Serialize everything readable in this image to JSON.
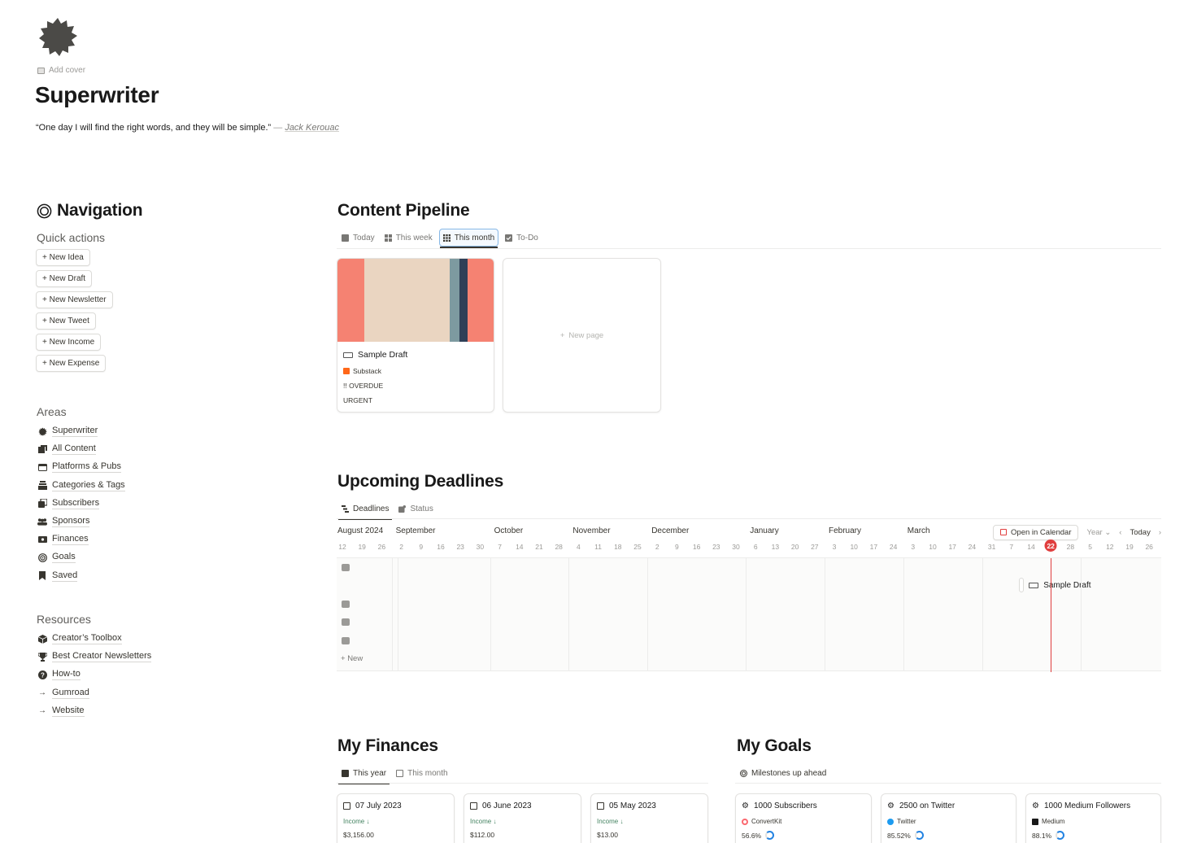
{
  "page": {
    "icon": "badge-icon",
    "add_cover": "Add cover",
    "title": "Superwriter",
    "quote": "“One day I will find the right words, and they will be simple.”",
    "quote_dash": "—",
    "quote_author": "Jack Kerouac"
  },
  "navigation": {
    "title": "Navigation",
    "quick_actions_title": "Quick actions",
    "quick_actions": [
      "+ New Idea",
      "+ New Draft",
      "+ New Newsletter",
      "+ New Tweet",
      "+ New Income",
      "+ New Expense"
    ],
    "areas_title": "Areas",
    "areas": [
      {
        "label": "Superwriter",
        "icon": "badge-icon"
      },
      {
        "label": "All Content",
        "icon": "content-icon"
      },
      {
        "label": "Platforms & Pubs",
        "icon": "browser-icon"
      },
      {
        "label": "Categories & Tags",
        "icon": "stack-icon"
      },
      {
        "label": "Subscribers",
        "icon": "contacts-icon"
      },
      {
        "label": "Sponsors",
        "icon": "people-icon"
      },
      {
        "label": "Finances",
        "icon": "money-icon"
      },
      {
        "label": "Goals",
        "icon": "target-icon"
      },
      {
        "label": "Saved",
        "icon": "bookmark-icon"
      }
    ],
    "resources_title": "Resources",
    "resources": [
      {
        "label": "Creator’s Toolbox",
        "icon": "cube-icon"
      },
      {
        "label": "Best Creator Newsletters",
        "icon": "trophy-icon"
      },
      {
        "label": "How-to",
        "icon": "question-icon"
      },
      {
        "label": "Gumroad",
        "icon": "arrow-right-icon"
      },
      {
        "label": "Website",
        "icon": "arrow-right-icon"
      }
    ]
  },
  "content_pipeline": {
    "title": "Content Pipeline",
    "tabs": [
      "Today",
      "This week",
      "This month",
      "To-Do"
    ],
    "active_tab": "This month",
    "cards": [
      {
        "name": "Sample Draft",
        "platform": "Substack",
        "status": "!! OVERDUE",
        "priority": "URGENT"
      }
    ],
    "new_page": "New page",
    "colors": {
      "cover_bg": "#f58272",
      "cover_paper": "#ead5c1",
      "cover_teal": "#7d9aa0",
      "cover_navy": "#2e3f57",
      "substack": "#ff6719"
    }
  },
  "deadlines": {
    "title": "Upcoming Deadlines",
    "tabs": [
      "Deadlines",
      "Status"
    ],
    "active_tab": "Deadlines",
    "months": [
      "August 2024",
      "September",
      "October",
      "November",
      "December",
      "January",
      "February",
      "March"
    ],
    "days": [
      "12",
      "19",
      "26",
      "2",
      "9",
      "16",
      "23",
      "30",
      "7",
      "14",
      "21",
      "28",
      "4",
      "11",
      "18",
      "25",
      "2",
      "9",
      "16",
      "23",
      "30",
      "6",
      "13",
      "20",
      "27",
      "3",
      "10",
      "17",
      "24",
      "3",
      "10",
      "17",
      "24",
      "31",
      "7",
      "14",
      "22",
      "28",
      "5",
      "12",
      "19",
      "26"
    ],
    "today": "22",
    "open_calendar": "Open in Calendar",
    "scale": "Year",
    "today_button": "Today",
    "new_label": "New",
    "item": "Sample Draft",
    "today_color": "#e03e3e"
  },
  "finances": {
    "title": "My Finances",
    "tabs": [
      "This year",
      "This month"
    ],
    "active_tab": "This year",
    "cards": [
      {
        "date": "07 July 2023",
        "type": "Income ↓",
        "amount": "$3,156.00"
      },
      {
        "date": "06 June 2023",
        "type": "Income ↓",
        "amount": "$112.00"
      },
      {
        "date": "05 May 2023",
        "type": "Income ↓",
        "amount": "$13.00"
      }
    ]
  },
  "goals": {
    "title": "My Goals",
    "tab": "Milestones up ahead",
    "cards": [
      {
        "name": "1000 Subscribers",
        "platform": "ConvertKit",
        "progress": "56.6%",
        "progress_value": 0.566
      },
      {
        "name": "2500 on Twitter",
        "platform": "Twitter",
        "progress": "85.52%",
        "progress_value": 0.8552
      },
      {
        "name": "1000 Medium Followers",
        "platform": "Medium",
        "progress": "88.1%",
        "progress_value": 0.881
      }
    ]
  }
}
